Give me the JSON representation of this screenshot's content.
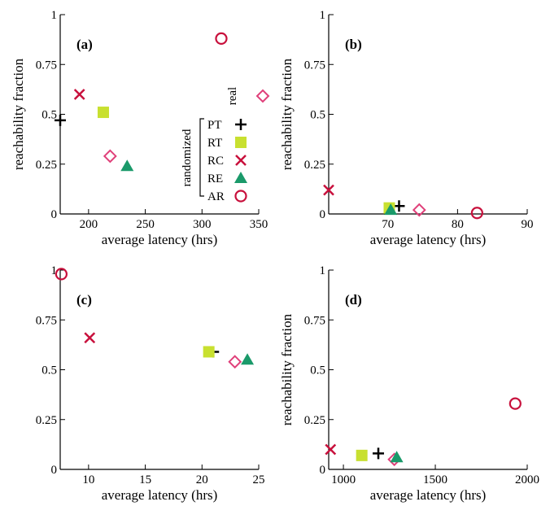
{
  "series_styles": {
    "real": {
      "color": "#e0407a",
      "marker": "diamond-open"
    },
    "PT": {
      "color": "#000000",
      "marker": "plus"
    },
    "RT": {
      "color": "#c8e030",
      "marker": "square-filled"
    },
    "RC": {
      "color": "#c8103c",
      "marker": "x"
    },
    "RE": {
      "color": "#1a9a6a",
      "marker": "triangle-filled"
    },
    "AR": {
      "color": "#c8103c",
      "marker": "circle-open"
    }
  },
  "legend": {
    "real_label": "real",
    "randomized_label": "randomized",
    "items": [
      "PT",
      "RT",
      "RC",
      "RE",
      "AR"
    ]
  },
  "chart_data": [
    {
      "type": "scatter",
      "panel": "(a)",
      "xlabel": "average latency (hrs)",
      "ylabel": "reachability fraction",
      "xlim": [
        175,
        350
      ],
      "ylim": [
        0,
        1
      ],
      "xticks": [
        200,
        250,
        300,
        350
      ],
      "yticks": [
        0,
        0.25,
        0.5,
        0.75,
        1
      ],
      "ytick_labels": [
        "0",
        "0.25",
        "0.5",
        "0.75",
        "1"
      ],
      "points": [
        {
          "series": "real",
          "x": 219,
          "y": 0.29
        },
        {
          "series": "PT",
          "x": 175,
          "y": 0.47
        },
        {
          "series": "RT",
          "x": 213,
          "y": 0.51
        },
        {
          "series": "RC",
          "x": 192,
          "y": 0.6
        },
        {
          "series": "RE",
          "x": 234,
          "y": 0.24
        },
        {
          "series": "AR",
          "x": 317,
          "y": 0.88
        }
      ]
    },
    {
      "type": "scatter",
      "panel": "(b)",
      "xlabel": "average latency (hrs)",
      "ylabel": "reachability fraction",
      "xlim": [
        61.5,
        90
      ],
      "ylim": [
        0,
        1
      ],
      "xticks": [
        70,
        80,
        90
      ],
      "yticks": [
        0,
        0.25,
        0.5,
        0.75,
        1
      ],
      "ytick_labels": [
        "0",
        "0.25",
        "0.5",
        "0.75",
        "1"
      ],
      "points": [
        {
          "series": "real",
          "x": 74.5,
          "y": 0.02
        },
        {
          "series": "PT",
          "x": 71.6,
          "y": 0.04
        },
        {
          "series": "RT",
          "x": 70.2,
          "y": 0.03
        },
        {
          "series": "RC",
          "x": 61.5,
          "y": 0.12
        },
        {
          "series": "RE",
          "x": 70.4,
          "y": 0.02
        },
        {
          "series": "AR",
          "x": 82.8,
          "y": 0.005
        }
      ]
    },
    {
      "type": "scatter",
      "panel": "(c)",
      "xlabel": "average latency (hrs)",
      "ylabel": "",
      "xlim": [
        7.5,
        25
      ],
      "ylim": [
        0,
        1
      ],
      "xticks": [
        10,
        15,
        20,
        25
      ],
      "yticks": [
        0,
        0.25,
        0.5,
        0.75,
        1
      ],
      "ytick_labels": [
        "0",
        "0.25",
        "0.5",
        "0.75",
        "1"
      ],
      "points": [
        {
          "series": "real",
          "x": 22.9,
          "y": 0.54
        },
        {
          "series": "PT",
          "x": 21.0,
          "y": 0.59
        },
        {
          "series": "RT",
          "x": 20.6,
          "y": 0.59
        },
        {
          "series": "RC",
          "x": 10.1,
          "y": 0.66
        },
        {
          "series": "RE",
          "x": 24.0,
          "y": 0.55
        },
        {
          "series": "AR",
          "x": 7.6,
          "y": 0.98
        }
      ]
    },
    {
      "type": "scatter",
      "panel": "(d)",
      "xlabel": "average latency (hrs)",
      "ylabel": "reachability fraction",
      "xlim": [
        920,
        2000
      ],
      "ylim": [
        0,
        1
      ],
      "xticks": [
        1000,
        1500,
        2000
      ],
      "yticks": [
        0,
        0.25,
        0.5,
        0.75,
        1
      ],
      "ytick_labels": [
        "0",
        "0.25",
        "0.5",
        "0.75",
        "1"
      ],
      "points": [
        {
          "series": "real",
          "x": 1277,
          "y": 0.05
        },
        {
          "series": "PT",
          "x": 1190,
          "y": 0.08
        },
        {
          "series": "RT",
          "x": 1100,
          "y": 0.07
        },
        {
          "series": "RC",
          "x": 930,
          "y": 0.1
        },
        {
          "series": "RE",
          "x": 1290,
          "y": 0.06
        },
        {
          "series": "AR",
          "x": 1935,
          "y": 0.33
        }
      ]
    }
  ]
}
